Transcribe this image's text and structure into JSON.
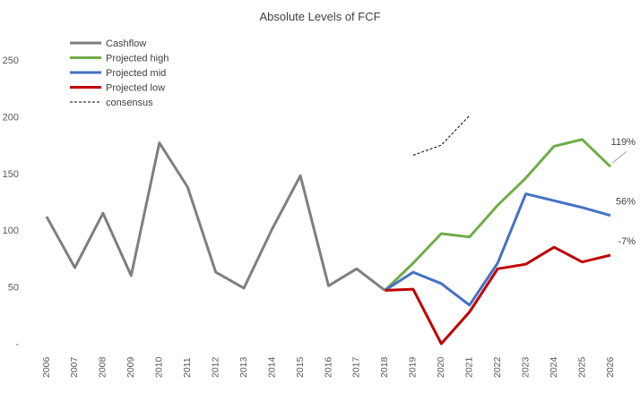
{
  "chart_data": {
    "type": "line",
    "title": "Absolute Levels of FCF",
    "xlabel": "",
    "ylabel": "",
    "categories": [
      "2006",
      "2007",
      "2008",
      "2009",
      "2010",
      "2011",
      "2012",
      "2013",
      "2014",
      "2015",
      "2016",
      "2017",
      "2018",
      "2019",
      "2020",
      "2021",
      "2022",
      "2023",
      "2024",
      "2025",
      "2026"
    ],
    "y_ticks": [
      "-",
      "50",
      "100",
      "150",
      "200",
      "250"
    ],
    "ylim": [
      0,
      250
    ],
    "grid": false,
    "legend_position": "top-left",
    "series": [
      {
        "name": "Cashflow",
        "color": "#7f7f7f",
        "style": "solid",
        "values": [
          112,
          67,
          115,
          60,
          177,
          138,
          63,
          49,
          101,
          148,
          51,
          66,
          47,
          null,
          null,
          null,
          null,
          null,
          null,
          null,
          null
        ]
      },
      {
        "name": "Projected high",
        "color": "#70ad47",
        "style": "solid",
        "values": [
          null,
          null,
          null,
          null,
          null,
          null,
          null,
          null,
          null,
          null,
          null,
          null,
          47,
          71,
          97,
          94,
          122,
          146,
          174,
          180,
          156
        ]
      },
      {
        "name": "Projected mid",
        "color": "#4472c4",
        "style": "solid",
        "values": [
          null,
          null,
          null,
          null,
          null,
          null,
          null,
          null,
          null,
          null,
          null,
          null,
          47,
          63,
          53,
          34,
          71,
          132,
          126,
          120,
          113
        ]
      },
      {
        "name": "Projected low",
        "color": "#c00000",
        "style": "solid",
        "values": [
          null,
          null,
          null,
          null,
          null,
          null,
          null,
          null,
          null,
          null,
          null,
          null,
          47,
          48,
          0,
          28,
          66,
          70,
          85,
          72,
          78
        ]
      },
      {
        "name": "consensus",
        "color": "#000000",
        "style": "dashed",
        "values": [
          null,
          null,
          null,
          null,
          null,
          null,
          null,
          null,
          null,
          null,
          null,
          null,
          null,
          166,
          175,
          201,
          null,
          null,
          null,
          null,
          null
        ]
      }
    ],
    "annotations": [
      {
        "text": "119%",
        "series": "Projected high"
      },
      {
        "text": "56%",
        "series": "Projected mid"
      },
      {
        "text": "-7%",
        "series": "Projected low"
      }
    ]
  }
}
